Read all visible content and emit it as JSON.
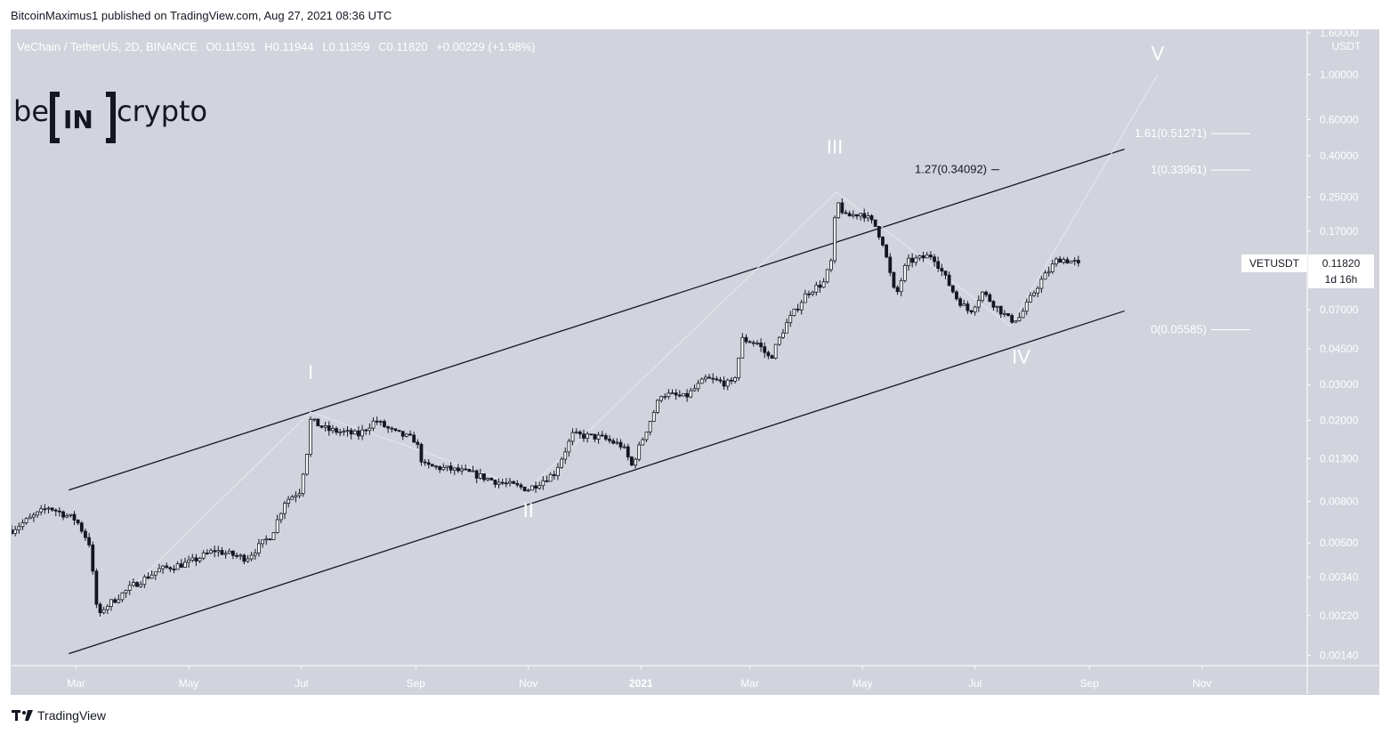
{
  "header": {
    "text": "BitcoinMaximus1 published on TradingView.com, Aug 27, 2021 08:36 UTC"
  },
  "footer": {
    "brand": "TradingView"
  },
  "watermark": {
    "logo_text": "be[IN]crypto"
  },
  "colors": {
    "background": "#d1d4dc",
    "candle": "#131722",
    "channel": "#131722",
    "wave_labels": "#ffffff",
    "fib_levels": "#ffffff",
    "text_dark": "#131722",
    "axis_text": "#ffffff"
  },
  "chart_data": {
    "type": "candlestick",
    "legend": {
      "symbol": "VeChain / TetherUS, 2D, BINANCE",
      "open_label": "O",
      "open": "0.11591",
      "high_label": "H",
      "high": "0.11944",
      "low_label": "L",
      "low": "0.11359",
      "close_label": "C",
      "close": "0.11820",
      "change": "+0.00229 (+1.98%)"
    },
    "y_axis": {
      "scale": "log",
      "unit": "USDT",
      "ticks": [
        "1.60000",
        "1.00000",
        "0.60000",
        "0.40000",
        "0.25000",
        "0.17000",
        "0.07000",
        "0.04500",
        "0.03000",
        "0.02000",
        "0.01300",
        "0.00800",
        "0.00500",
        "0.00340",
        "0.00220",
        "0.00140"
      ],
      "range": [
        0.00125,
        1.65
      ]
    },
    "x_axis": {
      "ticks": [
        {
          "label": "Mar",
          "date": "2020-03-01"
        },
        {
          "label": "May",
          "date": "2020-05-01"
        },
        {
          "label": "Jul",
          "date": "2020-07-01"
        },
        {
          "label": "Sep",
          "date": "2020-09-01"
        },
        {
          "label": "Nov",
          "date": "2020-11-01"
        },
        {
          "label": "2021",
          "date": "2021-01-01"
        },
        {
          "label": "Mar",
          "date": "2021-03-01"
        },
        {
          "label": "May",
          "date": "2021-05-01"
        },
        {
          "label": "Jul",
          "date": "2021-07-01"
        },
        {
          "label": "Sep",
          "date": "2021-09-01"
        },
        {
          "label": "Nov",
          "date": "2021-11-01"
        }
      ],
      "range": [
        "2020-01-26",
        "2021-12-28"
      ]
    },
    "price_path": [
      [
        "2020-01-26",
        0.0058
      ],
      [
        "2020-02-15",
        0.0075
      ],
      [
        "2020-03-01",
        0.0065
      ],
      [
        "2020-03-08",
        0.005
      ],
      [
        "2020-03-13",
        0.0021
      ],
      [
        "2020-03-16",
        0.0024
      ],
      [
        "2020-04-01",
        0.0031
      ],
      [
        "2020-04-15",
        0.0037
      ],
      [
        "2020-05-01",
        0.004
      ],
      [
        "2020-05-15",
        0.0046
      ],
      [
        "2020-06-01",
        0.0042
      ],
      [
        "2020-06-15",
        0.0055
      ],
      [
        "2020-06-22",
        0.008
      ],
      [
        "2020-06-30",
        0.009
      ],
      [
        "2020-07-04",
        0.014
      ],
      [
        "2020-07-06",
        0.02
      ],
      [
        "2020-07-15",
        0.018
      ],
      [
        "2020-08-01",
        0.017
      ],
      [
        "2020-08-10",
        0.02
      ],
      [
        "2020-08-20",
        0.0175
      ],
      [
        "2020-09-01",
        0.016
      ],
      [
        "2020-09-05",
        0.012
      ],
      [
        "2020-09-20",
        0.0115
      ],
      [
        "2020-10-01",
        0.011
      ],
      [
        "2020-10-15",
        0.01
      ],
      [
        "2020-11-01",
        0.0092
      ],
      [
        "2020-11-15",
        0.011
      ],
      [
        "2020-11-25",
        0.017
      ],
      [
        "2020-12-10",
        0.0165
      ],
      [
        "2020-12-22",
        0.015
      ],
      [
        "2020-12-27",
        0.012
      ],
      [
        "2021-01-05",
        0.019
      ],
      [
        "2021-01-12",
        0.027
      ],
      [
        "2021-01-25",
        0.026
      ],
      [
        "2021-02-05",
        0.032
      ],
      [
        "2021-02-20",
        0.03
      ],
      [
        "2021-02-25",
        0.05
      ],
      [
        "2021-03-05",
        0.048
      ],
      [
        "2021-03-12",
        0.04
      ],
      [
        "2021-03-20",
        0.058
      ],
      [
        "2021-04-01",
        0.085
      ],
      [
        "2021-04-10",
        0.095
      ],
      [
        "2021-04-14",
        0.12
      ],
      [
        "2021-04-17",
        0.24
      ],
      [
        "2021-04-22",
        0.2
      ],
      [
        "2021-05-01",
        0.21
      ],
      [
        "2021-05-08",
        0.18
      ],
      [
        "2021-05-12",
        0.15
      ],
      [
        "2021-05-19",
        0.08
      ],
      [
        "2021-05-25",
        0.12
      ],
      [
        "2021-06-08",
        0.13
      ],
      [
        "2021-06-21",
        0.08
      ],
      [
        "2021-06-28",
        0.068
      ],
      [
        "2021-07-05",
        0.085
      ],
      [
        "2021-07-20",
        0.062
      ],
      [
        "2021-07-25",
        0.064
      ],
      [
        "2021-08-05",
        0.095
      ],
      [
        "2021-08-15",
        0.125
      ],
      [
        "2021-08-27",
        0.1182
      ]
    ],
    "channel": {
      "upper": [
        [
          "2020-02-26",
          0.0091
        ],
        [
          "2021-09-20",
          0.43
        ]
      ],
      "lower": [
        [
          "2020-02-26",
          0.00143
        ],
        [
          "2021-09-20",
          0.069
        ]
      ]
    },
    "fib_levels": [
      {
        "label": "1.61(0.51271)",
        "value": 0.51271
      },
      {
        "label": "1(0.33961)",
        "value": 0.33961
      },
      {
        "label": "0(0.05585)",
        "value": 0.05585
      }
    ],
    "fib_extension_label": {
      "label": "1.27(0.34092)",
      "value": 0.34092
    },
    "wave_labels": [
      {
        "label": "I",
        "date": "2020-07-06",
        "value": 0.032
      },
      {
        "label": "II",
        "date": "2020-11-01",
        "value": 0.0067
      },
      {
        "label": "III",
        "date": "2021-04-16",
        "value": 0.41
      },
      {
        "label": "IV",
        "date": "2021-07-26",
        "value": 0.038
      },
      {
        "label": "V",
        "date": "2021-10-08",
        "value": 1.18
      }
    ],
    "wave_path": [
      [
        "2020-03-13",
        0.0021
      ],
      [
        "2020-07-06",
        0.022
      ],
      [
        "2020-11-01",
        0.0092
      ],
      [
        "2021-04-17",
        0.265
      ],
      [
        "2021-07-20",
        0.058
      ],
      [
        "2021-10-08",
        1.0
      ]
    ],
    "current_price": {
      "symbol": "VETUSDT",
      "value": "0.11820",
      "countdown": "1d 16h"
    }
  }
}
